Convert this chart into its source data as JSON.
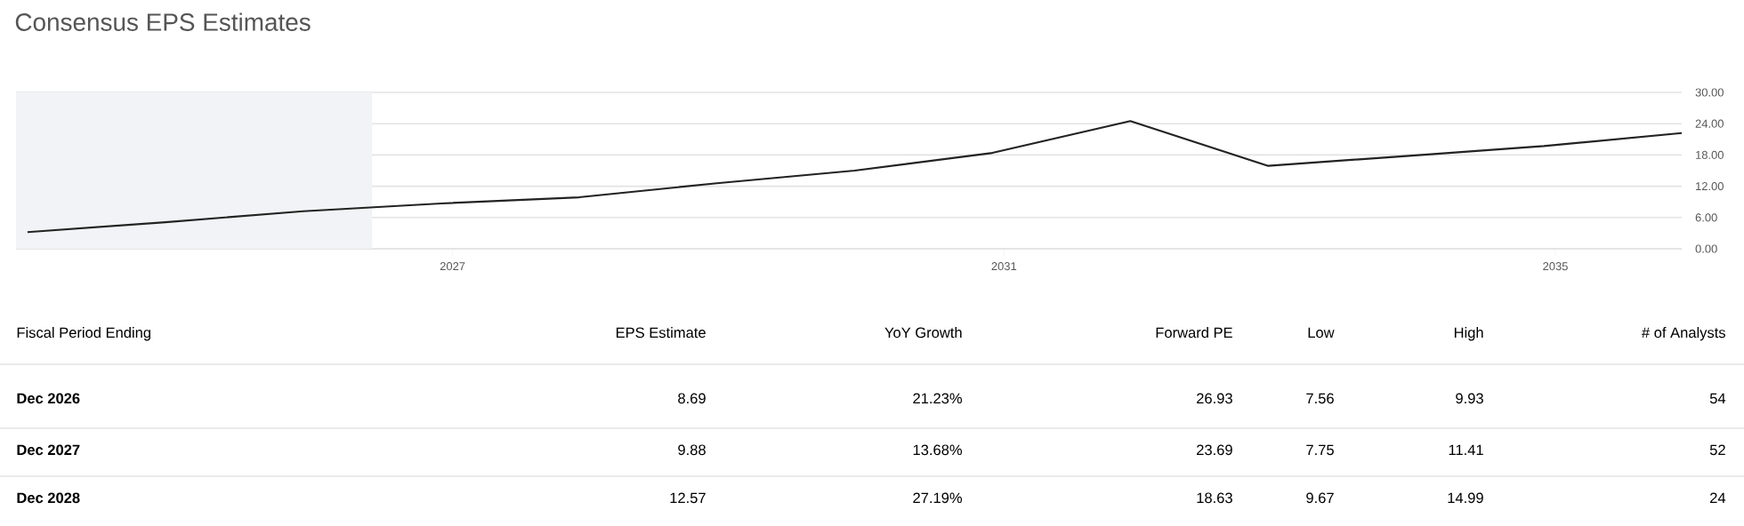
{
  "chart_data": {
    "type": "line",
    "title": "Consensus EPS Estimates",
    "x": [
      "2023-12",
      "2024-12",
      "2025-12",
      "2026-12",
      "2027-12",
      "2028-12",
      "2029-12",
      "2030-12",
      "2031-12",
      "2032-12",
      "2033-12",
      "2034-12",
      "2035-12"
    ],
    "series": [
      {
        "color": "#222222",
        "values": [
          3.2,
          5.1,
          7.2,
          8.69,
          9.88,
          12.57,
          15.0,
          18.4,
          24.5,
          15.9,
          17.8,
          19.7,
          22.2
        ]
      }
    ],
    "xlim": [
      "2023-11",
      "2035-12"
    ],
    "xticks": [
      {
        "value": "2027",
        "label": "2027"
      },
      {
        "value": "2031",
        "label": "2031"
      },
      {
        "value": "2035",
        "label": "2035"
      }
    ],
    "ylim": [
      0,
      30
    ],
    "yticks": [
      {
        "value": 0,
        "label": "0.00"
      },
      {
        "value": 6,
        "label": "6.00"
      },
      {
        "value": 12,
        "label": "12.00"
      },
      {
        "value": 18,
        "label": "18.00"
      },
      {
        "value": 24,
        "label": "24.00"
      },
      {
        "value": 30,
        "label": "30.00"
      }
    ],
    "bands": [
      {
        "axis": "x",
        "from": "2023-11",
        "to": "2026-06",
        "color": "#f2f3f6"
      }
    ],
    "grid": "y",
    "marker": "none",
    "line_style": "solid",
    "annotations": [
      "Fiscal Period Ending",
      "EPS Estimate",
      "YoY Growth",
      "Forward PE",
      "Low",
      "High",
      "# of Analysts",
      "Dec 2026",
      "8.69",
      "21.23%",
      "26.93",
      "7.56",
      "9.93",
      "54",
      "Dec 2027",
      "9.88",
      "13.68%",
      "23.69",
      "7.75",
      "11.41",
      "52",
      "Dec 2028",
      "12.57",
      "27.19%",
      "18.63",
      "9.67",
      "14.99",
      "24"
    ]
  }
}
